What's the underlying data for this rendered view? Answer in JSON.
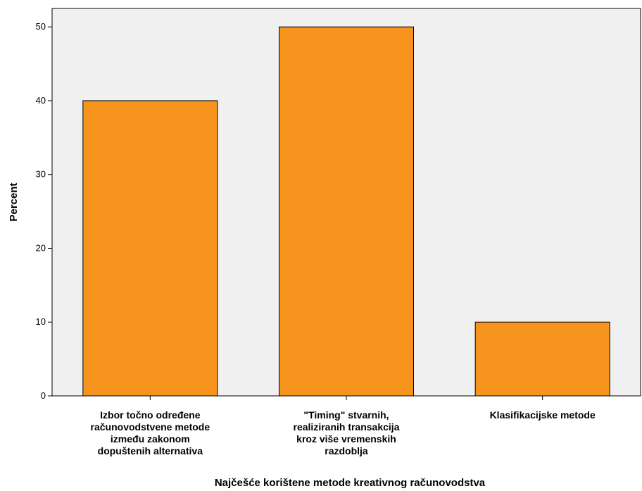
{
  "chart_data": {
    "type": "bar",
    "categories": [
      [
        "Izbor točno određene",
        "računovodstvene metode",
        "između zakonom",
        "dopuštenih alternativa"
      ],
      [
        "\"Timing\" stvarnih,",
        "realiziranih transakcija",
        "kroz više vremenskih",
        "razdoblja"
      ],
      [
        "Klasifikacijske metode"
      ]
    ],
    "values": [
      40,
      50,
      10
    ],
    "xlabel": "Najčešće korištene metode kreativnog računovodstva",
    "ylabel": "Percent",
    "ylim": [
      0,
      52.5
    ],
    "yticks": [
      0,
      10,
      20,
      30,
      40,
      50
    ],
    "grid": false,
    "colors": {
      "bar": "#f7941d",
      "bar_stroke": "#000000",
      "plot_bg": "#f0f0f0"
    }
  }
}
